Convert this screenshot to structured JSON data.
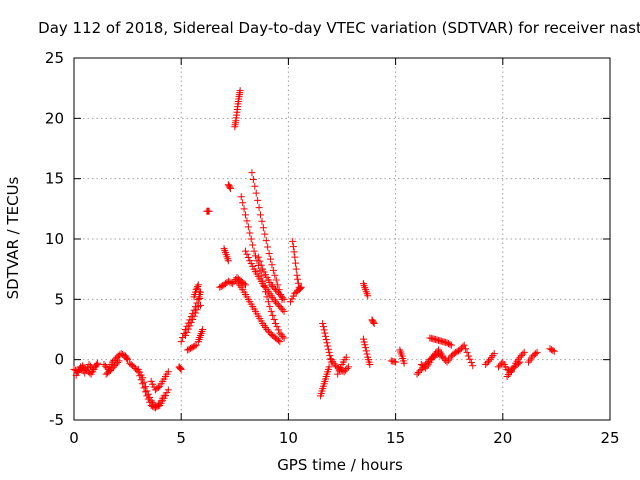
{
  "chart_data": {
    "type": "scatter",
    "title": "Day 112 of 2018, Sidereal Day-to-day VTEC variation (SDTVAR) for receiver nast",
    "xlabel": "GPS time / hours",
    "ylabel": "SDTVAR / TECUs",
    "xlim": [
      0,
      25
    ],
    "ylim": [
      -5,
      25
    ],
    "xticks": [
      0,
      5,
      10,
      15,
      20,
      25
    ],
    "yticks": [
      -5,
      0,
      5,
      10,
      15,
      20,
      25
    ],
    "xtick_labels": [
      "0",
      "5",
      "10",
      "15",
      "20",
      "25"
    ],
    "ytick_labels": [
      "-5",
      "0",
      "5",
      "10",
      "15",
      "20",
      "25"
    ],
    "grid": true,
    "marker": "+",
    "series": [
      {
        "name": "SDTVAR",
        "color": "#ff0000",
        "segments": [
          {
            "x": [
              0.0,
              0.2,
              0.4,
              0.6,
              0.8,
              1.0,
              1.1
            ],
            "y": [
              -0.8,
              -1.0,
              -0.5,
              -0.9,
              -1.2,
              -0.6,
              -0.3
            ]
          },
          {
            "x": [
              0.1,
              0.3,
              0.5,
              0.7,
              0.9
            ],
            "y": [
              -1.3,
              -0.6,
              -1.1,
              -0.4,
              -0.8
            ]
          },
          {
            "x": [
              1.4,
              1.6,
              1.8,
              2.0,
              2.2,
              2.4,
              2.5
            ],
            "y": [
              -0.4,
              -0.8,
              -0.2,
              0.2,
              0.5,
              0.3,
              0.0
            ]
          },
          {
            "x": [
              1.5,
              1.7,
              1.9,
              2.1
            ],
            "y": [
              -1.2,
              -0.9,
              -0.5,
              -0.1
            ]
          },
          {
            "x": [
              2.6,
              2.8,
              3.0,
              3.2,
              3.4,
              3.6,
              3.8,
              4.0,
              4.2
            ],
            "y": [
              -0.3,
              -0.6,
              -1.0,
              -2.0,
              -3.0,
              -3.8,
              -4.0,
              -3.6,
              -3.0
            ]
          },
          {
            "x": [
              3.0,
              3.2,
              3.4,
              3.6,
              3.8,
              4.0,
              4.2,
              4.4
            ],
            "y": [
              -0.8,
              -1.5,
              -2.6,
              -3.4,
              -3.9,
              -3.8,
              -3.2,
              -2.5
            ]
          },
          {
            "x": [
              3.6,
              3.8,
              4.0,
              4.2,
              4.4
            ],
            "y": [
              -1.8,
              -2.5,
              -2.2,
              -1.6,
              -1.0
            ]
          },
          {
            "x": [
              4.9,
              5.0
            ],
            "y": [
              -0.6,
              -0.8
            ]
          },
          {
            "x": [
              5.0,
              5.2,
              5.4,
              5.6,
              5.8,
              5.9
            ],
            "y": [
              1.5,
              2.5,
              3.3,
              4.1,
              5.0,
              5.6
            ]
          },
          {
            "x": [
              5.2,
              5.4,
              5.6,
              5.8
            ],
            "y": [
              2.0,
              2.8,
              3.6,
              4.4
            ]
          },
          {
            "x": [
              5.3,
              5.5,
              5.7
            ],
            "y": [
              0.8,
              1.0,
              1.2
            ]
          },
          {
            "x": [
              5.8,
              5.9,
              6.0
            ],
            "y": [
              1.5,
              2.0,
              2.5
            ]
          },
          {
            "x": [
              5.6,
              5.7,
              5.8,
              5.9
            ],
            "y": [
              5.2,
              5.8,
              6.2,
              4.5
            ]
          },
          {
            "x": [
              6.2,
              6.3
            ],
            "y": [
              12.3,
              12.3
            ]
          },
          {
            "x": [
              6.8,
              7.0,
              7.2,
              7.4,
              7.6,
              7.8,
              8.0
            ],
            "y": [
              6.0,
              6.2,
              6.5,
              6.3,
              6.8,
              6.5,
              6.2
            ]
          },
          {
            "x": [
              7.0,
              7.1,
              7.2
            ],
            "y": [
              9.2,
              8.7,
              8.2
            ]
          },
          {
            "x": [
              7.2,
              7.3
            ],
            "y": [
              14.5,
              14.2
            ]
          },
          {
            "x": [
              7.5,
              7.55,
              7.6,
              7.65,
              7.7,
              7.75
            ],
            "y": [
              19.3,
              19.8,
              20.5,
              21.2,
              21.8,
              22.3
            ]
          },
          {
            "x": [
              7.8,
              8.0,
              8.2,
              8.4,
              8.6,
              8.8,
              9.0,
              9.2,
              9.4,
              9.6,
              9.8
            ],
            "y": [
              13.5,
              12.0,
              10.5,
              9.0,
              7.8,
              6.5,
              5.2,
              4.0,
              3.0,
              2.2,
              1.8
            ]
          },
          {
            "x": [
              8.3,
              8.5,
              8.7,
              8.9,
              9.1,
              9.3,
              9.5,
              9.7
            ],
            "y": [
              15.5,
              13.8,
              12.0,
              10.4,
              8.8,
              7.4,
              6.2,
              5.0
            ]
          },
          {
            "x": [
              7.6,
              7.8,
              8.0,
              8.2,
              8.4,
              8.6,
              8.8,
              9.0,
              9.2,
              9.4,
              9.6
            ],
            "y": [
              6.5,
              6.0,
              5.4,
              4.8,
              4.2,
              3.6,
              3.0,
              2.5,
              2.1,
              1.8,
              1.5
            ]
          },
          {
            "x": [
              8.0,
              8.2,
              8.4,
              8.6,
              8.8,
              9.0,
              9.2,
              9.4,
              9.6,
              9.8
            ],
            "y": [
              9.0,
              8.2,
              7.5,
              6.9,
              6.3,
              5.8,
              5.3,
              4.8,
              4.4,
              4.0
            ]
          },
          {
            "x": [
              8.6,
              8.8,
              9.0,
              9.2,
              9.4,
              9.6,
              9.8
            ],
            "y": [
              8.5,
              7.5,
              6.8,
              6.2,
              5.8,
              5.4,
              5.0
            ]
          },
          {
            "x": [
              10.2,
              10.3,
              10.4,
              10.5
            ],
            "y": [
              9.8,
              8.5,
              7.0,
              6.0
            ]
          },
          {
            "x": [
              10.1,
              10.3,
              10.5,
              10.6
            ],
            "y": [
              4.8,
              5.5,
              5.8,
              6.0
            ]
          },
          {
            "x": [
              11.5,
              11.6,
              11.7,
              11.8,
              11.9
            ],
            "y": [
              -3.0,
              -2.4,
              -1.8,
              -1.2,
              -0.6
            ]
          },
          {
            "x": [
              11.6,
              11.7,
              11.8,
              11.9,
              12.0
            ],
            "y": [
              3.0,
              2.2,
              1.4,
              0.6,
              -0.2
            ]
          },
          {
            "x": [
              12.0,
              12.2,
              12.4,
              12.6,
              12.8
            ],
            "y": [
              0.0,
              -0.5,
              -0.8,
              -1.0,
              -0.6
            ]
          },
          {
            "x": [
              12.3,
              12.5,
              12.7
            ],
            "y": [
              -1.2,
              -0.4,
              0.2
            ]
          },
          {
            "x": [
              13.5,
              13.6,
              13.7
            ],
            "y": [
              6.3,
              5.8,
              5.3
            ]
          },
          {
            "x": [
              13.5,
              13.6,
              13.7,
              13.8
            ],
            "y": [
              1.7,
              1.0,
              0.2,
              -0.4
            ]
          },
          {
            "x": [
              13.9,
              14.0
            ],
            "y": [
              3.3,
              3.0
            ]
          },
          {
            "x": [
              14.8,
              15.0
            ],
            "y": [
              -0.1,
              -0.2
            ]
          },
          {
            "x": [
              15.2,
              15.3,
              15.4
            ],
            "y": [
              0.8,
              0.3,
              -0.3
            ]
          },
          {
            "x": [
              16.0,
              16.2,
              16.4,
              16.6,
              16.8,
              17.0,
              17.2,
              17.4,
              17.6,
              17.8,
              18.0
            ],
            "y": [
              -1.2,
              -0.8,
              -0.4,
              0.0,
              0.3,
              0.5,
              0.2,
              -0.2,
              0.3,
              0.6,
              0.8
            ]
          },
          {
            "x": [
              16.6,
              16.8,
              17.0,
              17.2,
              17.4,
              17.6
            ],
            "y": [
              1.8,
              1.7,
              1.6,
              1.5,
              1.4,
              1.2
            ]
          },
          {
            "x": [
              16.2,
              16.4,
              16.6,
              16.8,
              17.0,
              17.2
            ],
            "y": [
              -0.4,
              -0.7,
              -0.2,
              0.4,
              0.8,
              0.3
            ]
          },
          {
            "x": [
              18.0,
              18.2,
              18.4,
              18.6
            ],
            "y": [
              0.8,
              1.2,
              0.3,
              -0.5
            ]
          },
          {
            "x": [
              19.2,
              19.4,
              19.6
            ],
            "y": [
              -0.4,
              0.0,
              0.5
            ]
          },
          {
            "x": [
              19.8,
              20.0,
              20.2,
              20.4,
              20.6,
              20.8,
              21.0
            ],
            "y": [
              -0.6,
              -0.2,
              -0.8,
              -1.0,
              -0.3,
              0.2,
              0.6
            ]
          },
          {
            "x": [
              20.2,
              20.4,
              20.6,
              20.8
            ],
            "y": [
              -1.4,
              -0.9,
              -0.5,
              -0.2
            ]
          },
          {
            "x": [
              21.2,
              21.4,
              21.6
            ],
            "y": [
              -0.2,
              0.3,
              0.6
            ]
          },
          {
            "x": [
              22.2,
              22.4
            ],
            "y": [
              0.9,
              0.7
            ]
          }
        ]
      }
    ]
  }
}
